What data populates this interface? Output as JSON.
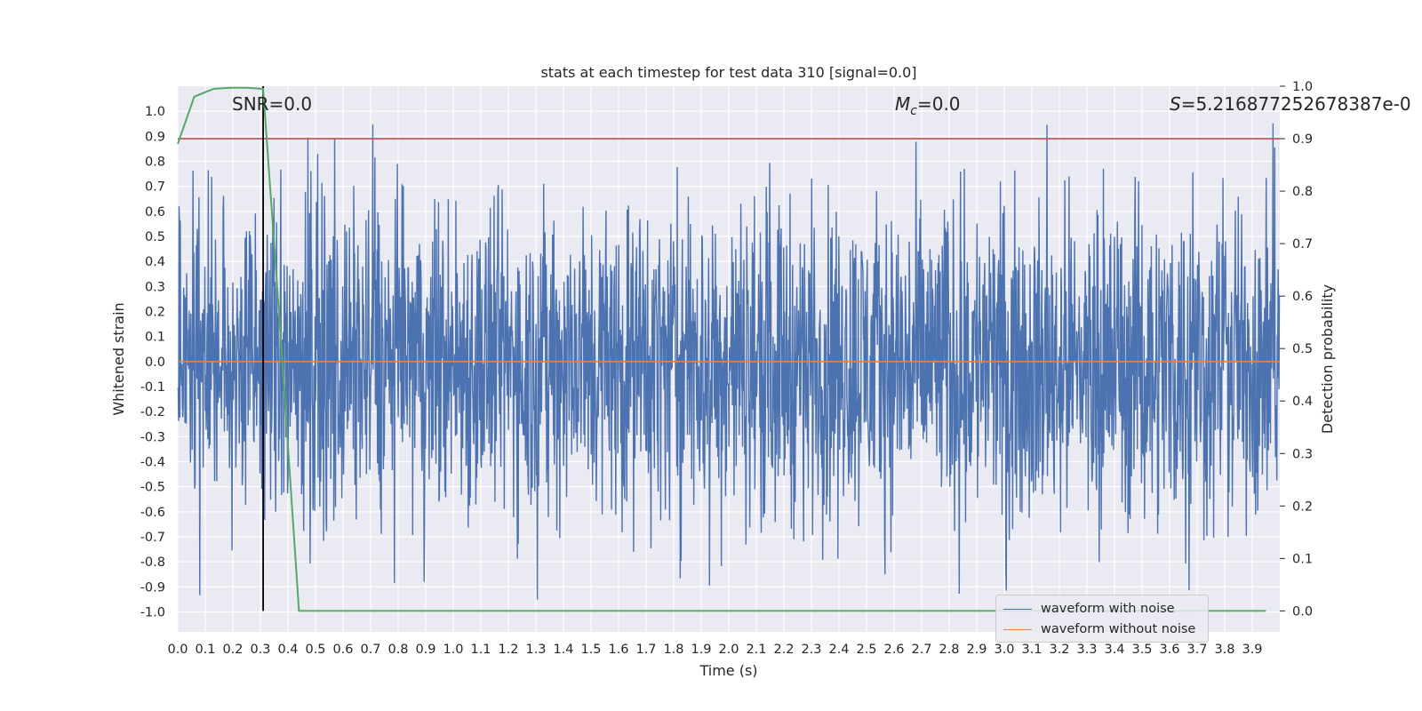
{
  "chart_data": {
    "type": "line",
    "title": "stats at each timestep for test data 310 [signal=0.0]",
    "xlabel": "Time (s)",
    "ylabel_left": "Whitened strain",
    "ylabel_right": "Detection probability",
    "xlim": [
      0.0,
      4.0
    ],
    "ylim_left": [
      -1.08,
      1.1
    ],
    "ylim_right": [
      -0.04,
      1.0
    ],
    "grid": true,
    "x_ticks": [
      "0.0",
      "0.1",
      "0.2",
      "0.3",
      "0.4",
      "0.5",
      "0.6",
      "0.7",
      "0.8",
      "0.9",
      "1.0",
      "1.1",
      "1.2",
      "1.3",
      "1.4",
      "1.5",
      "1.6",
      "1.7",
      "1.8",
      "1.9",
      "2.0",
      "2.1",
      "2.2",
      "2.3",
      "2.4",
      "2.5",
      "2.6",
      "2.7",
      "2.8",
      "2.9",
      "3.0",
      "3.1",
      "3.2",
      "3.3",
      "3.4",
      "3.5",
      "3.6",
      "3.7",
      "3.8",
      "3.9"
    ],
    "y_ticks_left": [
      "1.0",
      "0.9",
      "0.8",
      "0.7",
      "0.6",
      "0.5",
      "0.4",
      "0.3",
      "0.2",
      "0.1",
      "0.0",
      "-0.1",
      "-0.2",
      "-0.3",
      "-0.4",
      "-0.5",
      "-0.6",
      "-0.7",
      "-0.8",
      "-0.9",
      "-1.0"
    ],
    "y_ticks_right": [
      "1.0",
      "0.9",
      "0.8",
      "0.7",
      "0.6",
      "0.5",
      "0.4",
      "0.3",
      "0.2",
      "0.1",
      "0.0"
    ],
    "annotations": {
      "snr": "SNR=0.0",
      "mc_symbol": "M",
      "mc_sub": "c",
      "mc_value": "=0.0",
      "s_symbol": "S",
      "s_value": "=5.216877252678387e-0"
    },
    "series": [
      {
        "name": "waveform with noise",
        "color": "#4c72b0",
        "axis": "left",
        "kind": "noise",
        "amplitude_envelope": [
          -0.98,
          1.0
        ],
        "typical_range": [
          -0.5,
          0.55
        ]
      },
      {
        "name": "waveform without noise",
        "color": "#dd8452",
        "axis": "left",
        "kind": "flat",
        "value": 0.0
      }
    ],
    "probability_series": {
      "color": "#55a868",
      "axis": "right",
      "x": [
        0.0,
        0.06,
        0.13,
        0.19,
        0.25,
        0.31,
        0.37,
        0.44,
        0.5,
        3.95
      ],
      "y": [
        0.89,
        0.98,
        0.995,
        0.997,
        0.997,
        0.995,
        0.55,
        0.0,
        0.0,
        0.0
      ]
    },
    "threshold_line": {
      "color": "#c44e52",
      "axis": "right",
      "value": 0.9
    },
    "vertical_marker": {
      "color": "#000000",
      "x": 0.31,
      "y_range_right": [
        0.0,
        1.0
      ]
    },
    "legend_placement": "lower-right"
  }
}
